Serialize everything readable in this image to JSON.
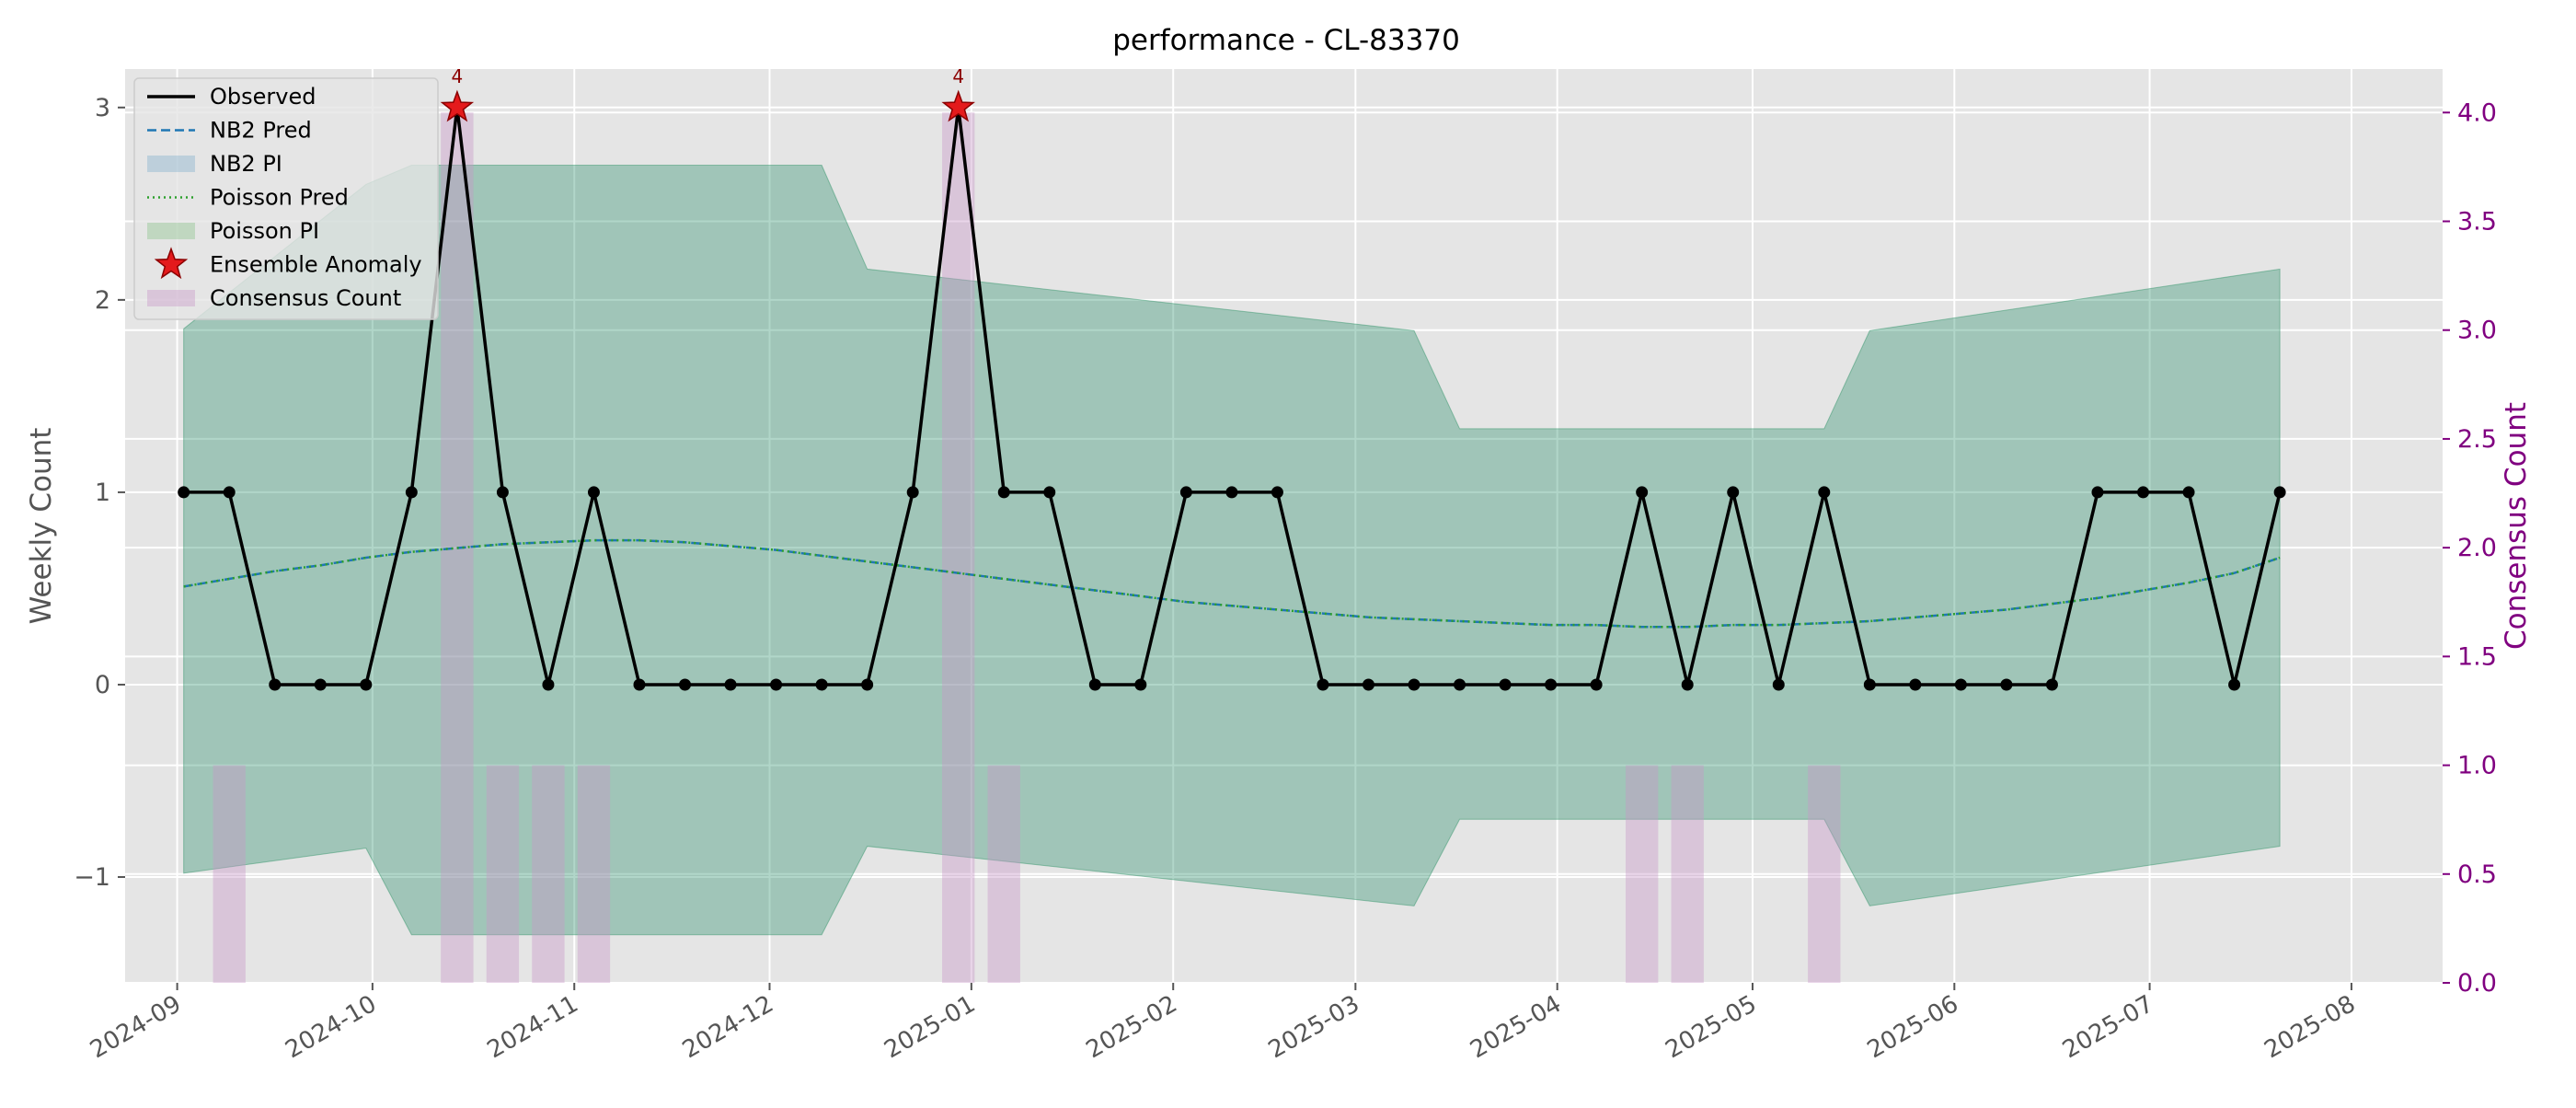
{
  "chart_data": {
    "type": "line",
    "title": "performance - CL-83370",
    "xlabel": "",
    "ylabel": "Weekly Count",
    "y2label": "Consensus Count",
    "ylim": [
      -1.55,
      3.2
    ],
    "y2lim": [
      0.0,
      4.2
    ],
    "xlim": [
      "2024-08-24",
      "2025-08-15"
    ],
    "yticks": [
      -1,
      0,
      1,
      2,
      3
    ],
    "ytick_labels": [
      "−1",
      "0",
      "1",
      "2",
      "3"
    ],
    "y2ticks": [
      0.0,
      0.5,
      1.0,
      1.5,
      2.0,
      2.5,
      3.0,
      3.5,
      4.0
    ],
    "y2tick_labels": [
      "0.0",
      "0.5",
      "1.0",
      "1.5",
      "2.0",
      "2.5",
      "3.0",
      "3.5",
      "4.0"
    ],
    "xticks": [
      "2024-09-01",
      "2024-10-01",
      "2024-11-01",
      "2024-12-01",
      "2025-01-01",
      "2025-02-01",
      "2025-03-01",
      "2025-04-01",
      "2025-05-01",
      "2025-06-01",
      "2025-07-01",
      "2025-08-01"
    ],
    "xtick_labels": [
      "2024-09",
      "2024-10",
      "2024-11",
      "2024-12",
      "2025-01",
      "2025-02",
      "2025-03",
      "2025-04",
      "2025-05",
      "2025-06",
      "2025-07",
      "2025-08"
    ],
    "grid": true,
    "legend_position": "upper-left",
    "legend": [
      "Observed",
      "NB2 Pred",
      "NB2 PI",
      "Poisson Pred",
      "Poisson PI",
      "Ensemble Anomaly",
      "Consensus Count"
    ],
    "colors": {
      "observed": "#000000",
      "nb2_pred": "#1f77b4",
      "nb2_pi": "#1f77b4",
      "poisson_pred": "#2ca02c",
      "poisson_pi": "#2ca02c",
      "anomaly": "#e41a1c",
      "consensus": "#c995c9",
      "y2_axis": "#800080",
      "plot_bg": "#e5e5e5"
    },
    "x": [
      "2024-09-02",
      "2024-09-09",
      "2024-09-16",
      "2024-09-23",
      "2024-09-30",
      "2024-10-07",
      "2024-10-14",
      "2024-10-21",
      "2024-10-28",
      "2024-11-04",
      "2024-11-11",
      "2024-11-18",
      "2024-11-25",
      "2024-12-02",
      "2024-12-09",
      "2024-12-16",
      "2024-12-23",
      "2024-12-30",
      "2025-01-06",
      "2025-01-13",
      "2025-01-20",
      "2025-01-27",
      "2025-02-03",
      "2025-02-10",
      "2025-02-17",
      "2025-02-24",
      "2025-03-03",
      "2025-03-10",
      "2025-03-17",
      "2025-03-24",
      "2025-03-31",
      "2025-04-07",
      "2025-04-14",
      "2025-04-21",
      "2025-04-28",
      "2025-05-05",
      "2025-05-12",
      "2025-05-19",
      "2025-05-26",
      "2025-06-02",
      "2025-06-09",
      "2025-06-16",
      "2025-06-23",
      "2025-06-30",
      "2025-07-07",
      "2025-07-14",
      "2025-07-21"
    ],
    "series": [
      {
        "name": "Observed",
        "values": [
          1,
          1,
          0,
          0,
          0,
          1,
          3,
          1,
          0,
          1,
          0,
          0,
          0,
          0,
          0,
          0,
          1,
          3,
          1,
          1,
          0,
          0,
          1,
          1,
          1,
          0,
          0,
          0,
          0,
          0,
          0,
          0,
          1,
          0,
          1,
          0,
          1,
          0,
          0,
          0,
          0,
          0,
          1,
          1,
          1,
          0,
          1
        ]
      },
      {
        "name": "NB2 Pred",
        "values": [
          0.51,
          0.55,
          0.59,
          0.62,
          0.66,
          0.69,
          0.71,
          0.73,
          0.74,
          0.75,
          0.75,
          0.74,
          0.72,
          0.7,
          0.67,
          0.64,
          0.61,
          0.58,
          0.55,
          0.52,
          0.49,
          0.46,
          0.43,
          0.41,
          0.39,
          0.37,
          0.35,
          0.34,
          0.33,
          0.32,
          0.31,
          0.31,
          0.3,
          0.3,
          0.31,
          0.31,
          0.32,
          0.33,
          0.35,
          0.37,
          0.39,
          0.42,
          0.45,
          0.49,
          0.53,
          0.58,
          0.66
        ]
      },
      {
        "name": "Poisson Pred",
        "values": [
          0.51,
          0.55,
          0.59,
          0.62,
          0.66,
          0.69,
          0.71,
          0.73,
          0.74,
          0.75,
          0.75,
          0.74,
          0.72,
          0.7,
          0.67,
          0.64,
          0.61,
          0.58,
          0.55,
          0.52,
          0.49,
          0.46,
          0.43,
          0.41,
          0.39,
          0.37,
          0.35,
          0.34,
          0.33,
          0.32,
          0.31,
          0.31,
          0.3,
          0.3,
          0.31,
          0.31,
          0.32,
          0.33,
          0.35,
          0.37,
          0.39,
          0.42,
          0.45,
          0.49,
          0.53,
          0.58,
          0.66
        ]
      }
    ],
    "nb2_pi": {
      "x": [
        "2024-09-02",
        "2024-09-30",
        "2024-10-07",
        "2024-12-09",
        "2024-12-16",
        "2025-03-10",
        "2025-03-17",
        "2025-05-12",
        "2025-05-19",
        "2025-07-21"
      ],
      "lower": [
        -0.98,
        -0.85,
        -1.3,
        -1.3,
        -0.84,
        -1.15,
        -0.7,
        -0.7,
        -1.15,
        -0.84
      ],
      "upper": [
        1.85,
        2.6,
        2.7,
        2.7,
        2.16,
        1.84,
        1.33,
        1.33,
        1.84,
        2.16
      ]
    },
    "poisson_pi": {
      "x": [
        "2024-09-02",
        "2024-09-30",
        "2024-10-07",
        "2024-12-09",
        "2024-12-16",
        "2025-03-10",
        "2025-03-17",
        "2025-05-12",
        "2025-05-19",
        "2025-07-21"
      ],
      "lower": [
        -0.98,
        -0.85,
        -1.3,
        -1.3,
        -0.84,
        -1.15,
        -0.7,
        -0.7,
        -1.15,
        -0.84
      ],
      "upper": [
        1.85,
        2.6,
        2.7,
        2.7,
        2.16,
        1.84,
        1.33,
        1.33,
        1.84,
        2.16
      ]
    },
    "anomalies": [
      {
        "x": "2024-10-14",
        "y": 3,
        "label": "4"
      },
      {
        "x": "2024-12-30",
        "y": 3,
        "label": "4"
      }
    ],
    "consensus_counts": [
      {
        "x": "2024-09-09",
        "value": 1
      },
      {
        "x": "2024-10-14",
        "value": 4
      },
      {
        "x": "2024-10-21",
        "value": 1
      },
      {
        "x": "2024-10-28",
        "value": 1
      },
      {
        "x": "2024-11-04",
        "value": 1
      },
      {
        "x": "2024-12-30",
        "value": 4
      },
      {
        "x": "2025-01-06",
        "value": 1
      },
      {
        "x": "2025-04-14",
        "value": 1
      },
      {
        "x": "2025-04-21",
        "value": 1
      },
      {
        "x": "2025-05-12",
        "value": 1
      }
    ]
  }
}
